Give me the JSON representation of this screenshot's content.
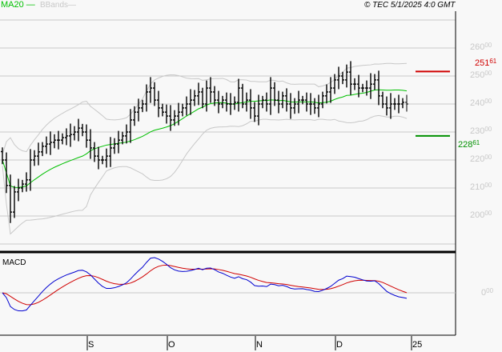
{
  "legend": {
    "ma_label": "MA20",
    "bb_label": "BBands",
    "ma_color": "#00c000",
    "bb_color": "#c8c8c8"
  },
  "copyright": "© TEC 5/1/2025 4:0 GMT",
  "macd_label": "MACD",
  "chart_data": {
    "type": "bar",
    "subtype": "ohlc",
    "title": "",
    "yticks": [
      {
        "main": "260",
        "dec": "00"
      },
      {
        "main": "250",
        "dec": "00"
      },
      {
        "main": "240",
        "dec": "00"
      },
      {
        "main": "230",
        "dec": "00"
      },
      {
        "main": "220",
        "dec": "00"
      },
      {
        "main": "210",
        "dec": "00"
      },
      {
        "main": "200",
        "dec": "00"
      }
    ],
    "macd_ytick": {
      "main": "0",
      "dec": "00"
    },
    "ylim": [
      187,
      270
    ],
    "xticks": [
      "S",
      "O",
      "N",
      "D",
      "25"
    ],
    "xtick_bar_index": [
      21,
      41,
      63,
      83,
      102
    ],
    "resistance": {
      "main": "251",
      "dec": "61",
      "value": 251.61,
      "color": "#d00000"
    },
    "support": {
      "main": "228",
      "dec": "61",
      "value": 228.61,
      "color": "#009000"
    },
    "closes": [
      220,
      210.9,
      201.4,
      208.6,
      210,
      211.4,
      212.9,
      220,
      221.4,
      222.9,
      224.9,
      225.7,
      226.3,
      227.1,
      227.1,
      228,
      228.6,
      229.1,
      230,
      231.4,
      230,
      227.1,
      224.3,
      221.4,
      220,
      220,
      221.4,
      224.3,
      225.7,
      227.1,
      228.6,
      230,
      234.3,
      237.1,
      238.6,
      240,
      244.3,
      245.7,
      241.4,
      238.6,
      237.1,
      235.7,
      234.3,
      235.7,
      237.1,
      238.6,
      240,
      241.4,
      242.9,
      244.3,
      240,
      245.7,
      244.3,
      241.4,
      240,
      241.4,
      240,
      240,
      240.6,
      245.7,
      240,
      241.4,
      238.6,
      235.7,
      240,
      241.4,
      240,
      245.7,
      241.4,
      240,
      242.9,
      240,
      238.6,
      240,
      241.4,
      241.4,
      240,
      240,
      238.6,
      240,
      242.9,
      244.3,
      245.7,
      248.6,
      250,
      248.6,
      251.4,
      247.1,
      247.1,
      245.7,
      245.7,
      245.7,
      247.1,
      248.6,
      242.9,
      240,
      238.6,
      240,
      240,
      240,
      240.6,
      240
    ],
    "indicators": [
      "MA20",
      "Bollinger Bands (20,2)",
      "MACD"
    ]
  }
}
